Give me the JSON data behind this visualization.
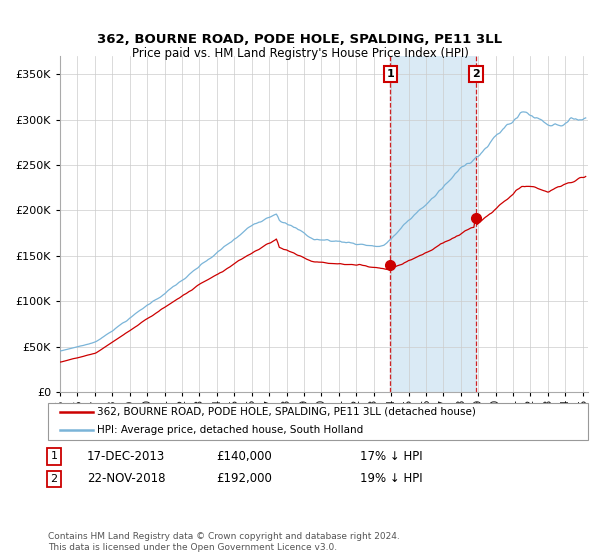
{
  "title": "362, BOURNE ROAD, PODE HOLE, SPALDING, PE11 3LL",
  "subtitle": "Price paid vs. HM Land Registry's House Price Index (HPI)",
  "legend_line1": "362, BOURNE ROAD, PODE HOLE, SPALDING, PE11 3LL (detached house)",
  "legend_line2": "HPI: Average price, detached house, South Holland",
  "annotation1_date": "17-DEC-2013",
  "annotation1_price": "£140,000",
  "annotation1_pct": "17% ↓ HPI",
  "annotation2_date": "22-NOV-2018",
  "annotation2_price": "£192,000",
  "annotation2_pct": "19% ↓ HPI",
  "footer": "Contains HM Land Registry data © Crown copyright and database right 2024.\nThis data is licensed under the Open Government Licence v3.0.",
  "hpi_color": "#7ab4d8",
  "property_color": "#cc0000",
  "shade_color": "#daeaf5",
  "ylim": [
    0,
    370000
  ],
  "ylabel_ticks": [
    0,
    50000,
    100000,
    150000,
    200000,
    250000,
    300000,
    350000
  ],
  "start_year": 1995,
  "end_year": 2025,
  "sale1_year": 2013.958,
  "sale1_price": 140000,
  "sale2_year": 2018.875,
  "sale2_price": 192000
}
